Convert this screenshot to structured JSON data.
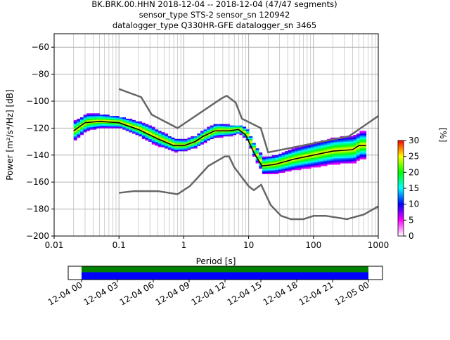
{
  "chart_data": {
    "type": "heatmap",
    "title_lines": [
      "BK.BRK.00.HHN   2018-12-04 -- 2018-12-04  (47/47 segments)",
      "sensor_type STS-2 sensor_sn 120942",
      "datalogger_type Q330HR-GFE datalogger_sn 3465"
    ],
    "xlabel": "Period [s]",
    "ylabel": "Power [m²/s⁴/Hz] [dB]",
    "xscale": "log",
    "xlim": [
      0.01,
      1000
    ],
    "ylim": [
      -200,
      -50
    ],
    "x_ticks": [
      {
        "v": 0.01,
        "l": "0.01"
      },
      {
        "v": 0.1,
        "l": "0.1"
      },
      {
        "v": 1,
        "l": "1"
      },
      {
        "v": 10,
        "l": "10"
      },
      {
        "v": 100,
        "l": "100"
      },
      {
        "v": 1000,
        "l": "1000"
      }
    ],
    "y_ticks": [
      -60,
      -80,
      -100,
      -120,
      -140,
      -160,
      -180,
      -200
    ],
    "grid": true,
    "colorbar": {
      "label": "[%]",
      "range": [
        0,
        30
      ],
      "ticks": [
        0,
        5,
        10,
        15,
        20,
        25,
        30
      ],
      "colors": [
        "#ffffff",
        "#ff00ff",
        "#0000ff",
        "#00ffff",
        "#00ff00",
        "#ffff00",
        "#ff0000"
      ]
    },
    "nhnm": [
      [
        0.1,
        -91
      ],
      [
        0.22,
        -97
      ],
      [
        0.32,
        -110
      ],
      [
        0.8,
        -120
      ],
      [
        3.8,
        -98
      ],
      [
        4.6,
        -96
      ],
      [
        6.3,
        -101
      ],
      [
        7.9,
        -113
      ],
      [
        15.4,
        -120
      ],
      [
        20,
        -138
      ],
      [
        354,
        -126
      ],
      [
        1000,
        -111
      ]
    ],
    "nlnm": [
      [
        0.1,
        -168
      ],
      [
        0.17,
        -166.7
      ],
      [
        0.4,
        -166.7
      ],
      [
        0.8,
        -169
      ],
      [
        1.24,
        -163
      ],
      [
        2.4,
        -148
      ],
      [
        4.3,
        -141
      ],
      [
        5,
        -141
      ],
      [
        6,
        -149
      ],
      [
        10,
        -163
      ],
      [
        12,
        -166
      ],
      [
        15.6,
        -162
      ],
      [
        21.9,
        -177
      ],
      [
        31.6,
        -185
      ],
      [
        45,
        -187.5
      ],
      [
        70,
        -187.5
      ],
      [
        101,
        -185
      ],
      [
        154,
        -185
      ],
      [
        328,
        -187.5
      ],
      [
        600,
        -184
      ],
      [
        1000,
        -178
      ]
    ],
    "mean": [
      [
        0.02,
        -122
      ],
      [
        0.03,
        -116
      ],
      [
        0.05,
        -115
      ],
      [
        0.1,
        -116
      ],
      [
        0.2,
        -121
      ],
      [
        0.4,
        -128
      ],
      [
        0.7,
        -133
      ],
      [
        1,
        -133
      ],
      [
        1.5,
        -130
      ],
      [
        2,
        -126
      ],
      [
        3,
        -122
      ],
      [
        5,
        -122
      ],
      [
        7,
        -121
      ],
      [
        9,
        -125
      ],
      [
        12,
        -138
      ],
      [
        16,
        -148
      ],
      [
        25,
        -147
      ],
      [
        50,
        -143
      ],
      [
        100,
        -140
      ],
      [
        200,
        -137
      ],
      [
        400,
        -136
      ],
      [
        500,
        -133
      ],
      [
        650,
        -133
      ]
    ],
    "band_spread_db": [
      [
        0.02,
        7
      ],
      [
        0.05,
        5
      ],
      [
        0.1,
        4
      ],
      [
        0.3,
        6
      ],
      [
        1,
        4
      ],
      [
        3,
        5
      ],
      [
        7,
        3
      ],
      [
        12,
        5
      ],
      [
        16,
        6
      ],
      [
        50,
        8
      ],
      [
        100,
        9
      ],
      [
        300,
        10
      ],
      [
        650,
        10
      ]
    ],
    "timeline": {
      "ticks": [
        "12-04 00",
        "12-04 03",
        "12-04 06",
        "12-04 09",
        "12-04 12",
        "12-04 15",
        "12-04 18",
        "12-04 21",
        "12-05 00"
      ],
      "coverage_colors": [
        "#008000",
        "#0000ff"
      ]
    }
  }
}
